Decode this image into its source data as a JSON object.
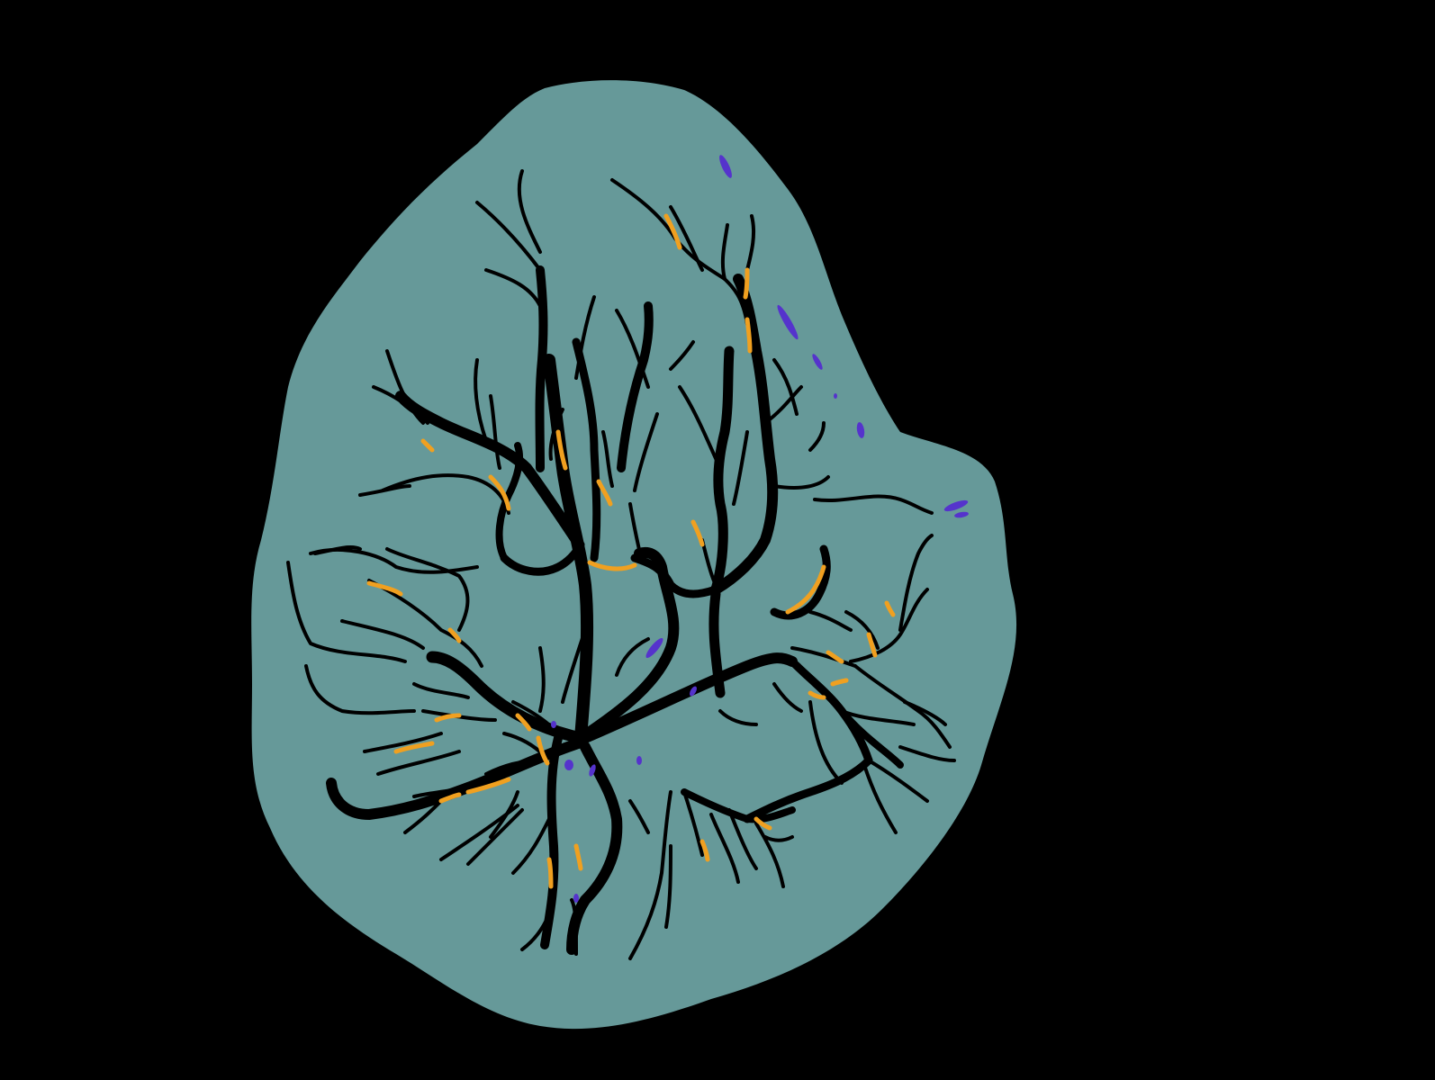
{
  "image": {
    "subject": "vessel-segmentation-mask",
    "colors": {
      "background": "#000000",
      "field": "#669999",
      "vessel": "#000000",
      "highlight_orange": "#f0a020",
      "highlight_blue": "#5533cc"
    }
  }
}
